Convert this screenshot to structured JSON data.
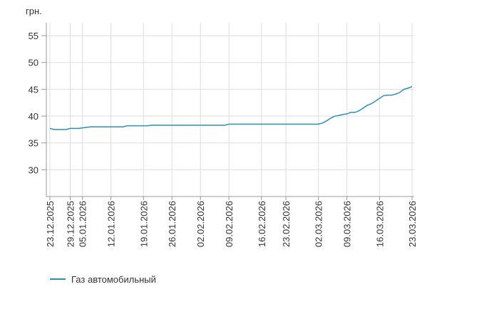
{
  "chart_data": {
    "type": "line",
    "y_label": "грн.",
    "categories": [
      "23.12.2025",
      null,
      null,
      null,
      null,
      "29.12.2025",
      null,
      null,
      "05.01.2026",
      null,
      null,
      null,
      null,
      null,
      null,
      "12.01.2026",
      null,
      null,
      null,
      null,
      null,
      null,
      null,
      "19.01.2026",
      null,
      null,
      null,
      null,
      null,
      null,
      "26.01.2026",
      null,
      null,
      null,
      null,
      null,
      null,
      "02.02.2026",
      null,
      null,
      null,
      null,
      null,
      null,
      "09.02.2026",
      null,
      null,
      null,
      null,
      null,
      null,
      null,
      "16.02.2026",
      null,
      null,
      null,
      null,
      null,
      "23.02.2026",
      null,
      null,
      null,
      null,
      null,
      null,
      null,
      "02.03.2026",
      null,
      null,
      null,
      null,
      null,
      null,
      "09.03.2026",
      null,
      null,
      null,
      null,
      null,
      null,
      null,
      "16.03.2026",
      null,
      null,
      null,
      null,
      null,
      null,
      null,
      "23.03.2026"
    ],
    "series": [
      {
        "name": "Газ автомобильный",
        "color": "#2b8fc0",
        "values": [
          37.7,
          37.5,
          37.5,
          37.5,
          37.5,
          37.7,
          37.7,
          37.7,
          37.8,
          37.9,
          38.0,
          38.0,
          38.0,
          38.0,
          38.0,
          38.0,
          38.0,
          38.0,
          38.0,
          38.2,
          38.2,
          38.2,
          38.2,
          38.2,
          38.2,
          38.3,
          38.3,
          38.3,
          38.3,
          38.3,
          38.3,
          38.3,
          38.3,
          38.3,
          38.3,
          38.3,
          38.3,
          38.3,
          38.3,
          38.3,
          38.3,
          38.3,
          38.3,
          38.3,
          38.5,
          38.5,
          38.5,
          38.5,
          38.5,
          38.5,
          38.5,
          38.5,
          38.5,
          38.5,
          38.5,
          38.5,
          38.5,
          38.5,
          38.5,
          38.5,
          38.5,
          38.5,
          38.5,
          38.5,
          38.5,
          38.5,
          38.5,
          38.7,
          39.1,
          39.6,
          40.0,
          40.1,
          40.3,
          40.4,
          40.7,
          40.7,
          41.0,
          41.5,
          42.0,
          42.3,
          42.8,
          43.3,
          43.8,
          43.9,
          43.9,
          44.1,
          44.4,
          45.0,
          45.2,
          45.5
        ]
      }
    ],
    "ylim": [
      25,
      57.4
    ],
    "yticks": [
      30,
      35,
      40,
      45,
      50,
      55
    ],
    "grid": true
  }
}
